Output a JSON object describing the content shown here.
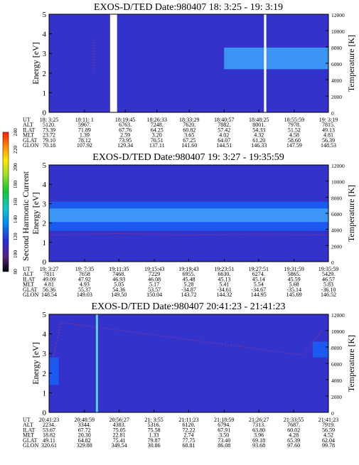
{
  "colorbar": {
    "label": "Second Harmonic Current",
    "ticks": [
      "80",
      "100",
      "120",
      "140",
      "160",
      "180",
      "200",
      "220",
      "240"
    ]
  },
  "colors": {
    "background": "#3333cc",
    "band_dark": "#0a33d8",
    "band_mid": "#1a5cf0",
    "band_light": "#3d9af5",
    "band_cyan": "#5fd0fa",
    "dots": "#cc3355",
    "gap": "#ffffff"
  },
  "panels": [
    {
      "title": "EXOS-D/TED   Date:980407   18: 3:25 - 19: 3:19",
      "ylabel_left": "Energy [eV]",
      "ylabel_right": "Temperature [K]",
      "yticks_left": [
        "0",
        "1",
        "2",
        "3",
        "4",
        "5"
      ],
      "yticks_right": [
        "0",
        "2000",
        "4000",
        "6000",
        "8000",
        "10000",
        "12000"
      ],
      "ephem_labels": [
        "UT",
        "ALT",
        "ILAT",
        "MLT",
        "GLAT",
        "GLON"
      ],
      "ephem_cols": [
        [
          "18: 3:25",
          "5120.",
          "73.39",
          "23.72",
          "79.10",
          "70.18"
        ],
        [
          "18:11: 1",
          "5967.",
          "71.89",
          "1.39",
          "78.12",
          "107.92"
        ],
        [
          "18:19:45",
          "6763.",
          "67.76",
          "2.59",
          "73.95",
          "129.34"
        ],
        [
          "18:26:33",
          "7248.",
          "64.25",
          "3.20",
          "70.51",
          "137.11"
        ],
        [
          "18:33:29",
          "7620.",
          "60.82",
          "3.65",
          "67.25",
          "141.60"
        ],
        [
          "18:40:57",
          "7882.",
          "57.42",
          "4.02",
          "64.07",
          "144.51"
        ],
        [
          "18:48:25",
          "8001.",
          "54.33",
          "4.32",
          "61.20",
          "146.33"
        ],
        [
          "18:55:59",
          "7978.",
          "51.52",
          "4.58",
          "58.60",
          "147.59"
        ],
        [
          "19: 3:19",
          "7815.",
          "49.13",
          "4.81",
          "56.39",
          "148.53"
        ]
      ]
    },
    {
      "title": "EXOS-D/TED   Date:980407   19: 3:27 - 19:35:59",
      "ylabel_left": "Energy [eV]",
      "ylabel_right": "Temperature [K]",
      "yticks_left": [
        "0",
        "1",
        "2",
        "3",
        "4",
        "5"
      ],
      "yticks_right": [
        "0",
        "2000",
        "4000",
        "6000",
        "8000",
        "10000",
        "12000"
      ],
      "ephem_labels": [
        "UT",
        "ALT",
        "ILAT",
        "MLT",
        "GLAT",
        "GLON"
      ],
      "ephem_cols": [
        [
          "19: 3:27",
          "7811",
          "49.09",
          "4.81",
          "56.36",
          "148.54"
        ],
        [
          "19: 7:35",
          "7658",
          "47.92",
          "4.93",
          "55.37",
          "149.03"
        ],
        [
          "19:11:35",
          "7468.",
          "46.93",
          "5.05",
          "54.36",
          "149.50"
        ],
        [
          "19:15:43",
          "7229",
          "46.08",
          "5.17",
          "53.57",
          "150.04"
        ],
        [
          "19:19:43",
          "6955.",
          "45.48",
          "5.28",
          "-34.87",
          "143.72"
        ],
        [
          "19:23:51",
          "6630.",
          "45.13",
          "5.41",
          "-34.61",
          "144.32"
        ],
        [
          "19:27:51",
          "6274.",
          "45.14",
          "5.54",
          "-34.67",
          "144.95"
        ],
        [
          "19:31:59",
          "5865.",
          "45.59",
          "5.68",
          "-35.14",
          "145.69"
        ],
        [
          "19:35:59",
          "5429.",
          "46.57",
          "5.83",
          "-36.10",
          "146.52"
        ]
      ]
    },
    {
      "title": "EXOS-D/TED   Date:980407   20:41:23 - 21:41:23",
      "ylabel_left": "Energy [eV]",
      "ylabel_right": "Temperature [K]",
      "yticks_left": [
        "0",
        "1",
        "2",
        "3",
        "4",
        "5"
      ],
      "yticks_right": [
        "0",
        "2000",
        "4000",
        "6000",
        "8000",
        "10000",
        "12000"
      ],
      "ephem_labels": [
        "UT",
        "ALT",
        "ILAT",
        "MLT",
        "GLAT",
        "GLON"
      ],
      "ephem_cols": [
        [
          "20:41:23",
          "2234.",
          "53.67",
          "18.82",
          "49.11",
          "320.61"
        ],
        [
          "20:48:59",
          "3344.",
          "67.72",
          "20.30",
          "64.82",
          "329.88"
        ],
        [
          "20:56:27",
          "4383.",
          "75.05",
          "22.81",
          "75.41",
          "349.54"
        ],
        [
          "21: 3:55",
          "5316.",
          "75.58",
          "1.33",
          "79.87",
          "30.86"
        ],
        [
          "21:11:23",
          "6120.",
          "72.22",
          "2.74",
          "77.75",
          "68.81"
        ],
        [
          "21:18:59",
          "6794.",
          "67.91",
          "3.50",
          "73.40",
          "86.08"
        ],
        [
          "21:26:27",
          "7313.",
          "63.80",
          "3.96",
          "69.18",
          "93.68"
        ],
        [
          "21:33:55",
          "7687.",
          "60.02",
          "4.28",
          "65.39",
          "97.60"
        ],
        [
          "21:41:23",
          "7919.",
          "56.59",
          "4.52",
          "62.04",
          "99.78"
        ]
      ]
    }
  ],
  "chart_data": [
    {
      "type": "heatmap",
      "title": "EXOS-D/TED   Date:980407   18: 3:25 - 19: 3:19",
      "ylabel": "Energy [eV]",
      "ylabel_right": "Temperature [K]",
      "ylim": [
        0,
        5
      ],
      "ylim_right": [
        0,
        12000
      ],
      "x": [
        "18: 3:25",
        "18:11: 1",
        "18:19:45",
        "18:26:33",
        "18:33:29",
        "18:40:57",
        "18:48:25",
        "18:55:59",
        "19: 3:19"
      ],
      "features": [
        {
          "kind": "band",
          "t_start": "18:40:57",
          "t_end": "19: 3:19",
          "e_low": 2.2,
          "e_high": 3.3,
          "level": "light"
        },
        {
          "kind": "data_gap",
          "t_start": "18:16:30",
          "t_end": "18:18:00"
        },
        {
          "kind": "data_gap",
          "t_start": "18:49:30",
          "t_end": "18:50:00"
        }
      ],
      "temperature_trace": [
        {
          "x": "18:13:00",
          "y": 5000
        },
        {
          "x": "18:13:00",
          "y": 9000
        }
      ]
    },
    {
      "type": "heatmap",
      "title": "EXOS-D/TED   Date:980407   19: 3:27 - 19:35:59",
      "ylabel": "Energy [eV]",
      "ylabel_right": "Temperature [K]",
      "ylim": [
        0,
        5
      ],
      "ylim_right": [
        0,
        12000
      ],
      "x": [
        "19: 3:27",
        "19: 7:35",
        "19:11:35",
        "19:15:43",
        "19:19:43",
        "19:23:51",
        "19:27:51",
        "19:31:59",
        "19:35:59"
      ],
      "features": [
        {
          "kind": "band",
          "t_start": "19: 3:27",
          "t_end": "19:35:59",
          "e_low": 1.6,
          "e_high": 3.1,
          "level": "mid"
        },
        {
          "kind": "band",
          "t_start": "19: 3:27",
          "t_end": "19:35:59",
          "e_low": 2.05,
          "e_high": 2.75,
          "level": "light"
        }
      ],
      "temperature_trace": [
        {
          "x": "19: 3:27",
          "y": 3300
        },
        {
          "x": "19:11:35",
          "y": 3500
        },
        {
          "x": "19:19:43",
          "y": 3300
        },
        {
          "x": "19:27:51",
          "y": 3400
        },
        {
          "x": "19:35:59",
          "y": 3300
        }
      ]
    },
    {
      "type": "heatmap",
      "title": "EXOS-D/TED   Date:980407   20:41:23 - 21:41:23",
      "ylabel": "Energy [eV]",
      "ylabel_right": "Temperature [K]",
      "ylim": [
        0,
        5
      ],
      "ylim_right": [
        0,
        12000
      ],
      "x": [
        "20:41:23",
        "20:48:59",
        "20:56:27",
        "21: 3:55",
        "21:11:23",
        "21:18:59",
        "21:26:27",
        "21:33:55",
        "21:41:23"
      ],
      "features": [
        {
          "kind": "band",
          "t_start": "20:41:23",
          "t_end": "20:43:30",
          "e_low": 1.4,
          "e_high": 2.8,
          "level": "mid"
        },
        {
          "kind": "band",
          "t_start": "21:38:00",
          "t_end": "21:41:23",
          "e_low": 2.8,
          "e_high": 3.6,
          "level": "mid"
        },
        {
          "kind": "spike",
          "t": "20:51:40"
        }
      ],
      "temperature_trace": [
        {
          "x": "20:42:00",
          "y": 6000
        },
        {
          "x": "20:44:00",
          "y": 11000
        },
        {
          "x": "21:36:00",
          "y": 7000
        },
        {
          "x": "21:40:00",
          "y": 10000
        }
      ]
    }
  ]
}
